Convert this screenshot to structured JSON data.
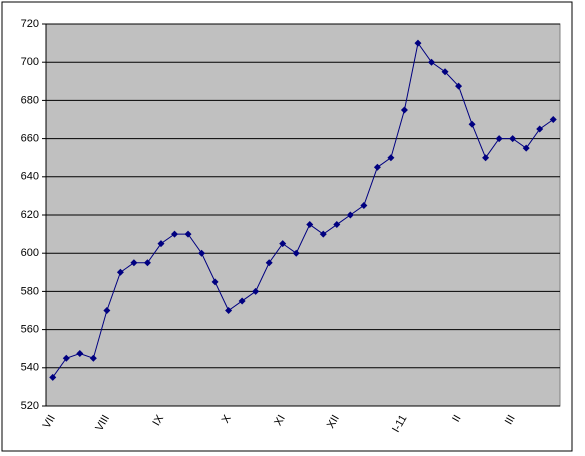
{
  "chart_data": {
    "type": "line",
    "categories": [
      "VII",
      null,
      null,
      null,
      "VIII",
      null,
      null,
      null,
      "IX",
      null,
      null,
      null,
      null,
      "X",
      null,
      null,
      null,
      "XI",
      null,
      null,
      null,
      "XII",
      null,
      null,
      null,
      null,
      "I-11",
      null,
      null,
      null,
      "II",
      null,
      null,
      null,
      "III",
      null,
      null,
      null
    ],
    "series": [
      {
        "color": "#000080",
        "values": [
          535,
          545,
          547.5,
          545,
          570,
          590,
          595,
          595,
          605,
          610,
          610,
          600,
          585,
          570,
          575,
          580,
          595,
          605,
          600,
          615,
          610,
          615,
          620,
          625,
          645,
          650,
          675,
          710,
          700,
          695,
          687.5,
          667.5,
          650,
          660,
          660,
          655,
          665,
          670
        ]
      }
    ],
    "ylim": [
      520,
      720
    ],
    "yticks": [
      520,
      540,
      560,
      580,
      600,
      620,
      640,
      660,
      680,
      700,
      720
    ],
    "grid": true,
    "plot_background": "#c0c0c0"
  }
}
